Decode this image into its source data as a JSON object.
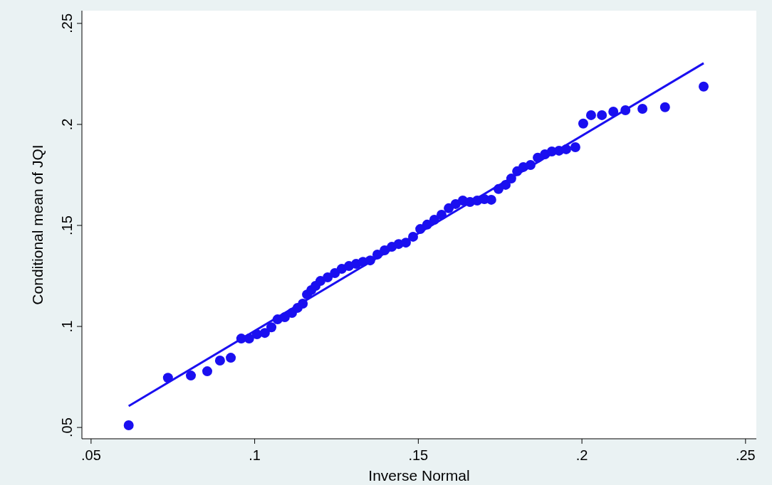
{
  "chart_data": {
    "type": "scatter",
    "xlabel": "Inverse Normal",
    "ylabel": "Conditional mean of JQI",
    "xlim": [
      0.0472,
      0.2533
    ],
    "ylim": [
      0.0444,
      0.2563
    ],
    "xticks": [
      {
        "value": 0.05,
        "label": ".05"
      },
      {
        "value": 0.1,
        "label": ".1"
      },
      {
        "value": 0.15,
        "label": ".15"
      },
      {
        "value": 0.2,
        "label": ".2"
      },
      {
        "value": 0.25,
        "label": ".25"
      }
    ],
    "yticks": [
      {
        "value": 0.05,
        "label": ".05"
      },
      {
        "value": 0.1,
        "label": ".1"
      },
      {
        "value": 0.15,
        "label": ".15"
      },
      {
        "value": 0.2,
        "label": ".2"
      },
      {
        "value": 0.25,
        "label": ".25"
      }
    ],
    "grid": false,
    "series": [
      {
        "marker": "circle",
        "color": "#1a0ff0",
        "x": [
          0.0615,
          0.0735,
          0.0805,
          0.0855,
          0.0894,
          0.0927,
          0.0959,
          0.0983,
          0.1007,
          0.1031,
          0.1051,
          0.107,
          0.1092,
          0.1114,
          0.1131,
          0.1147,
          0.116,
          0.1173,
          0.1186,
          0.1201,
          0.1223,
          0.1245,
          0.1266,
          0.1288,
          0.131,
          0.1331,
          0.1353,
          0.1375,
          0.1397,
          0.1419,
          0.144,
          0.1462,
          0.1484,
          0.1506,
          0.1527,
          0.1549,
          0.1571,
          0.1593,
          0.1614,
          0.1636,
          0.1658,
          0.168,
          0.1702,
          0.1723,
          0.1745,
          0.1767,
          0.1784,
          0.1802,
          0.1821,
          0.1843,
          0.1865,
          0.1887,
          0.1908,
          0.193,
          0.1952,
          0.198,
          0.2004,
          0.2028,
          0.2061,
          0.2096,
          0.2133,
          0.2185,
          0.2254,
          0.2372
        ],
        "values": [
          0.0511,
          0.0746,
          0.0757,
          0.0778,
          0.0831,
          0.0845,
          0.094,
          0.094,
          0.0961,
          0.0968,
          0.0996,
          0.1035,
          0.1046,
          0.1067,
          0.1092,
          0.1113,
          0.1158,
          0.118,
          0.1201,
          0.1225,
          0.1243,
          0.1264,
          0.1285,
          0.1299,
          0.131,
          0.132,
          0.1327,
          0.1356,
          0.1377,
          0.1394,
          0.1408,
          0.1415,
          0.1444,
          0.1482,
          0.1504,
          0.1528,
          0.1553,
          0.1585,
          0.1606,
          0.1623,
          0.1616,
          0.1623,
          0.163,
          0.1627,
          0.168,
          0.1701,
          0.1732,
          0.1768,
          0.1789,
          0.1799,
          0.1835,
          0.1852,
          0.1866,
          0.187,
          0.1877,
          0.1887,
          0.2004,
          0.2046,
          0.2046,
          0.2063,
          0.207,
          0.2077,
          0.2085,
          0.2187
        ]
      },
      {
        "type": "line",
        "color": "#1a0ff0",
        "x": [
          0.0615,
          0.2372
        ],
        "values": [
          0.0606,
          0.2303
        ]
      }
    ]
  }
}
